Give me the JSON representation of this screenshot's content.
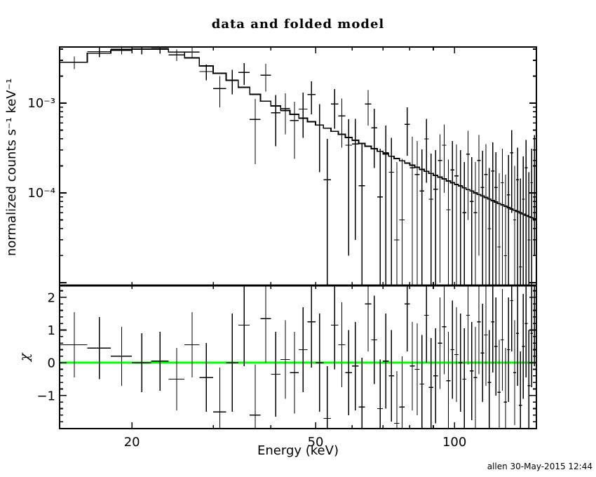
{
  "page": {
    "background": "#ffffff",
    "credit": "allen 30-May-2015 12:44"
  },
  "chart_data": [
    {
      "type": "line",
      "panel": "top",
      "title": "data and folded model",
      "ylabel": "normalized counts s⁻¹ keV⁻¹",
      "xscale": "log",
      "yscale": "log",
      "xlim": [
        13.94,
        150.5
      ],
      "ylim": [
        9.3e-06,
        0.00422
      ],
      "grid": false,
      "x_ticks_major": [
        {
          "v": 20,
          "label": "20"
        },
        {
          "v": 50,
          "label": "50"
        },
        {
          "v": 100,
          "label": "100"
        }
      ],
      "x_ticks_minor": [
        30,
        40,
        60,
        70,
        80,
        90
      ],
      "y_ticks_major": [
        {
          "v": 0.001,
          "label": "10⁻³"
        },
        {
          "v": 0.0001,
          "label": "10⁻⁴"
        },
        {
          "v": 1e-05,
          "label": ""
        }
      ],
      "y_ticks_minor": [
        0.004,
        0.003,
        0.002,
        0.0009,
        0.0008,
        0.0007,
        0.0006,
        0.0005,
        0.0004,
        0.0003,
        0.0002,
        9e-05,
        8e-05,
        7e-05,
        6e-05,
        5e-05,
        4e-05,
        3e-05,
        2e-05
      ],
      "bin_width_kev": 2,
      "energy_kev": [
        15,
        17,
        19,
        21,
        23,
        25,
        27,
        29,
        31,
        33,
        35,
        37,
        39,
        41,
        43,
        45,
        47,
        49,
        51,
        53,
        55,
        57,
        59,
        61,
        63,
        65,
        67,
        69,
        71,
        73,
        75,
        77,
        79,
        81,
        83,
        85,
        87,
        89,
        91,
        93,
        95,
        97,
        99,
        101,
        103,
        105,
        107,
        109,
        111,
        113,
        115,
        117,
        119,
        121,
        123,
        125,
        127,
        129,
        131,
        133,
        135,
        137,
        139,
        141,
        143,
        145,
        147,
        149
      ],
      "series": [
        {
          "name": "folded model",
          "style": "step-histogram",
          "color": "#000000",
          "values": [
            0.00285,
            0.0036,
            0.0039,
            0.004,
            0.004,
            0.0037,
            0.0032,
            0.0026,
            0.00215,
            0.0018,
            0.0015,
            0.00125,
            0.00105,
            0.00093,
            0.00083,
            0.00075,
            0.00068,
            0.00062,
            0.00057,
            0.000525,
            0.000485,
            0.00045,
            0.000415,
            0.000385,
            0.000355,
            0.00033,
            0.00031,
            0.00029,
            0.000272,
            0.000256,
            0.000242,
            0.000228,
            0.000215,
            0.000204,
            0.000193,
            0.000183,
            0.000174,
            0.000165,
            0.000157,
            0.00015,
            0.000143,
            0.000136,
            0.00013,
            0.000124,
            0.000119,
            0.000114,
            0.000109,
            0.000105,
            0.0001,
            9.6e-05,
            9.25e-05,
            8.9e-05,
            8.55e-05,
            8.2e-05,
            7.9e-05,
            7.6e-05,
            7.35e-05,
            7.1e-05,
            6.85e-05,
            6.6e-05,
            6.4e-05,
            6.2e-05,
            6e-05,
            5.8e-05,
            5.6e-05,
            5.45e-05,
            5.3e-05,
            5.15e-05
          ]
        },
        {
          "name": "data",
          "style": "points-with-errorbars",
          "color": "#000000",
          "values": [
            0.00285,
            0.00375,
            0.004,
            0.004,
            0.00405,
            0.00345,
            0.0037,
            0.00225,
            0.00145,
            0.0018,
            0.0022,
            0.00066,
            0.00205,
            0.00078,
            0.00087,
            0.00064,
            0.00086,
            0.00125,
            0.00057,
            0.00014,
            0.00098,
            0.00072,
            0.00034,
            0.00035,
            0.00012,
            0.00098,
            0.00053,
            9e-05,
            0.00028,
            0.00017,
            3e-05,
            5e-05,
            0.00058,
            0.00019,
            0.00016,
            0.000105,
            0.0004,
            8.5e-05,
            0.00011,
            0.00023,
            0.00034,
            6.5e-05,
            0.00018,
            0.000155,
            0.00012,
            6e-05,
            0.00027,
            8e-05,
            6e-05,
            0.00023,
            0.000115,
            0.00016,
            4e-05,
            0.000175,
            0.000115,
            2.5e-05,
            0.00013,
            2e-05,
            9.5e-05,
            0.00028,
            5e-05,
            0.00014,
            1.5e-05,
            8.5e-05,
            0.00019,
            3e-05,
            0.00013,
            0.00023
          ],
          "errors": [
            0.00045,
            0.0005,
            0.0005,
            0.0005,
            0.0005,
            0.0005,
            0.00055,
            0.00045,
            0.00055,
            0.00055,
            0.0006,
            0.00045,
            0.0007,
            0.00045,
            0.00042,
            0.0004,
            0.00045,
            0.0005,
            0.0004,
            0.00026,
            0.00046,
            0.0004,
            0.00032,
            0.00032,
            0.00024,
            0.00042,
            0.00034,
            0.00022,
            0.00028,
            0.00024,
            0.00019,
            0.00019,
            0.00032,
            0.00023,
            0.00022,
            0.0002,
            0.00027,
            0.00019,
            0.00019,
            0.00022,
            0.00024,
            0.00017,
            0.0002,
            0.00019,
            0.00018,
            0.00016,
            0.00022,
            0.00017,
            0.00016,
            0.00021,
            0.00018,
            0.00019,
            0.00015,
            0.00019,
            0.00017,
            0.00014,
            0.00018,
            0.00014,
            0.00017,
            0.00022,
            0.00015,
            0.00018,
            0.00013,
            0.00017,
            0.0002,
            0.00014,
            0.00018,
            0.00021
          ]
        }
      ]
    },
    {
      "type": "scatter",
      "panel": "bottom",
      "ylabel": "χ",
      "xlabel": "Energy (keV)",
      "xscale": "log",
      "xlim": [
        13.94,
        150.5
      ],
      "ylim": [
        -2.01,
        2.36
      ],
      "y_ticks_major": [
        {
          "v": 2,
          "label": "2"
        },
        {
          "v": 1,
          "label": "1"
        },
        {
          "v": 0,
          "label": "0"
        },
        {
          "v": -1,
          "label": "−1"
        }
      ],
      "y_tick_minor_step": 0.2,
      "zero_line": {
        "y": 0,
        "color": "#00FF00"
      },
      "bin_width_kev": 2,
      "energy_kev": [
        15,
        17,
        19,
        21,
        23,
        25,
        27,
        29,
        31,
        33,
        35,
        37,
        39,
        41,
        43,
        45,
        47,
        49,
        51,
        53,
        55,
        57,
        59,
        61,
        63,
        65,
        67,
        69,
        71,
        73,
        75,
        77,
        79,
        81,
        83,
        85,
        87,
        89,
        91,
        93,
        95,
        97,
        99,
        101,
        103,
        105,
        107,
        109,
        111,
        113,
        115,
        117,
        119,
        121,
        123,
        125,
        127,
        129,
        131,
        133,
        135,
        137,
        139,
        141,
        143,
        145,
        147,
        149
      ],
      "series": [
        {
          "name": "residuals chi",
          "style": "points-with-errorbars",
          "color": "#000000",
          "values": [
            0.55,
            0.45,
            0.2,
            0.0,
            0.05,
            -0.5,
            0.55,
            -0.45,
            -1.5,
            0.0,
            1.15,
            -1.6,
            1.35,
            -0.35,
            0.1,
            -0.3,
            0.4,
            1.25,
            0.0,
            -1.7,
            1.15,
            0.55,
            -0.3,
            -0.1,
            -1.35,
            1.8,
            0.7,
            -1.4,
            0.05,
            -0.4,
            -1.85,
            -1.35,
            1.8,
            -0.1,
            -0.2,
            -0.65,
            1.45,
            -0.75,
            -0.4,
            0.6,
            1.1,
            -0.55,
            0.4,
            0.25,
            0.0,
            -0.5,
            1.45,
            -0.25,
            -0.45,
            1.25,
            0.3,
            0.85,
            -0.6,
            1.25,
            0.5,
            -0.9,
            0.7,
            -1.2,
            0.4,
            1.9,
            -0.3,
            0.9,
            -1.3,
            0.5,
            1.2,
            -0.7,
            0.9,
            1.6
          ],
          "errors": [
            1.0,
            0.95,
            0.9,
            0.9,
            0.9,
            0.95,
            1.0,
            1.05,
            1.35,
            1.5,
            1.25,
            1.55,
            1.35,
            1.3,
            1.2,
            1.25,
            1.3,
            1.4,
            1.5,
            1.6,
            1.35,
            1.3,
            1.3,
            1.35,
            1.5,
            1.45,
            1.35,
            1.5,
            1.45,
            1.4,
            1.6,
            1.55,
            1.45,
            1.35,
            1.4,
            1.5,
            1.45,
            1.5,
            1.45,
            1.4,
            1.45,
            1.5,
            1.5,
            1.45,
            1.5,
            1.55,
            1.5,
            1.5,
            1.55,
            1.6,
            1.5,
            1.55,
            1.6,
            1.55,
            1.5,
            1.6,
            1.55,
            1.65,
            1.6,
            1.55,
            1.6,
            1.6,
            1.65,
            1.6,
            1.65,
            1.7,
            1.65,
            1.7
          ]
        }
      ]
    }
  ]
}
